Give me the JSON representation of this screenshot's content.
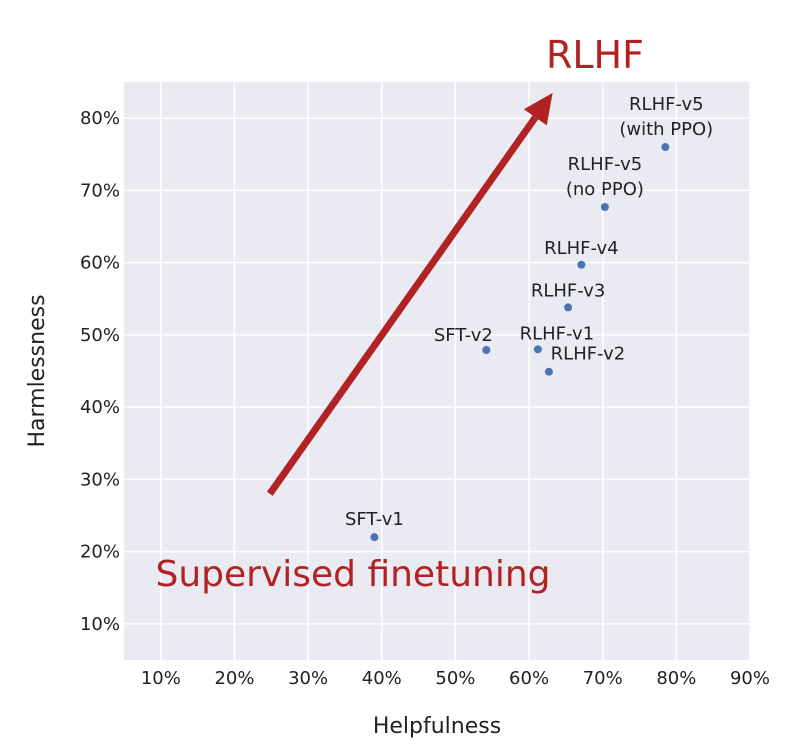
{
  "chart_data": {
    "type": "scatter",
    "xlabel": "Helpfulness",
    "ylabel": "Harmlessness",
    "xlim": [
      5,
      90
    ],
    "ylim": [
      5,
      85
    ],
    "xticks": [
      10,
      20,
      30,
      40,
      50,
      60,
      70,
      80,
      90
    ],
    "yticks": [
      10,
      20,
      30,
      40,
      50,
      60,
      70,
      80
    ],
    "tick_format": "%",
    "grid": true,
    "point_color": "#4c72b0",
    "background": "#eaeaf2",
    "points": [
      {
        "label": "SFT-v1",
        "x": 39,
        "y": 22
      },
      {
        "label": "SFT-v2",
        "x": 54.2,
        "y": 47.9
      },
      {
        "label": "RLHF-v1",
        "x": 61.2,
        "y": 48
      },
      {
        "label": "RLHF-v2",
        "x": 62.7,
        "y": 44.9
      },
      {
        "label": "RLHF-v3",
        "x": 65.3,
        "y": 53.8
      },
      {
        "label": "RLHF-v4",
        "x": 67.1,
        "y": 59.7
      },
      {
        "label": "RLHF-v5\n(no PPO)",
        "x": 70.3,
        "y": 67.7
      },
      {
        "label": "RLHF-v5\n(with PPO)",
        "x": 78.5,
        "y": 76
      }
    ],
    "arrow": {
      "from": [
        24.8,
        28
      ],
      "to": [
        63.2,
        83.5
      ],
      "color": "#b22222"
    },
    "annotations": [
      {
        "text": "RLHF",
        "color": "#b22222"
      },
      {
        "text": "Supervised finetuning",
        "color": "#b22222"
      }
    ]
  }
}
